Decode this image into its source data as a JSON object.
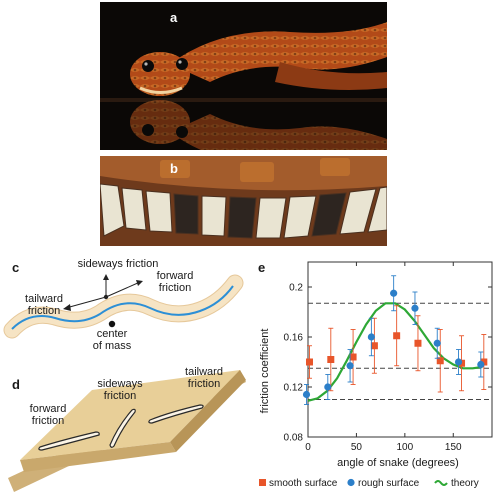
{
  "panels": {
    "a": "a",
    "b": "b",
    "c": "c",
    "d": "d",
    "e": "e"
  },
  "panel_c": {
    "sideways": "sideways friction",
    "forward_1": "forward",
    "forward_2": "friction",
    "tailward_1": "tailward",
    "tailward_2": "friction",
    "center_1": "center",
    "center_2": "of mass"
  },
  "panel_d": {
    "forward_1": "forward",
    "forward_2": "friction",
    "sideways_1": "sideways",
    "sideways_2": "friction",
    "tailward_1": "tailward",
    "tailward_2": "friction"
  },
  "colors": {
    "smooth": "#e8552a",
    "rough": "#2c7fc9",
    "theory": "#2ea836",
    "board": "#e8cf98",
    "snake_body": "#f6e4c4",
    "snake_line": "#2c8fd6"
  },
  "chart_data": {
    "type": "scatter",
    "xlabel": "angle of snake (degrees)",
    "ylabel": "friction coefficient",
    "xlim": [
      0,
      190
    ],
    "ylim": [
      0.08,
      0.22
    ],
    "x_ticks": [
      0,
      50,
      100,
      150
    ],
    "y_ticks": [
      0.08,
      0.12,
      0.16,
      0.2
    ],
    "y_tick_labels": [
      "0.08",
      "0.12",
      "0.16",
      "0.2"
    ],
    "grid": false,
    "dashed_lines": [
      0.187,
      0.135,
      0.11
    ],
    "series": [
      {
        "name": "smooth surface",
        "marker": "square",
        "x": [
          0,
          22,
          45,
          67,
          90,
          112,
          135,
          157,
          180
        ],
        "y": [
          0.14,
          0.142,
          0.144,
          0.153,
          0.161,
          0.155,
          0.141,
          0.139,
          0.14
        ],
        "err": [
          0.013,
          0.025,
          0.022,
          0.022,
          0.024,
          0.022,
          0.025,
          0.022,
          0.022
        ]
      },
      {
        "name": "rough surface",
        "marker": "circle",
        "x": [
          0,
          22,
          45,
          67,
          90,
          112,
          135,
          157,
          180
        ],
        "y": [
          0.114,
          0.12,
          0.137,
          0.16,
          0.195,
          0.183,
          0.155,
          0.14,
          0.138
        ],
        "err": [
          0.008,
          0.01,
          0.013,
          0.015,
          0.014,
          0.013,
          0.012,
          0.01,
          0.01
        ]
      },
      {
        "name": "theory",
        "line": true,
        "x": [
          0,
          10,
          20,
          30,
          40,
          50,
          60,
          70,
          80,
          90,
          100,
          110,
          120,
          130,
          140,
          150,
          160,
          170,
          180
        ],
        "y": [
          0.109,
          0.111,
          0.117,
          0.127,
          0.141,
          0.156,
          0.17,
          0.181,
          0.187,
          0.187,
          0.182,
          0.173,
          0.162,
          0.151,
          0.143,
          0.138,
          0.135,
          0.135,
          0.136
        ]
      }
    ],
    "legend": [
      "smooth surface",
      "rough surface",
      "theory"
    ],
    "legend_position": "bottom"
  }
}
